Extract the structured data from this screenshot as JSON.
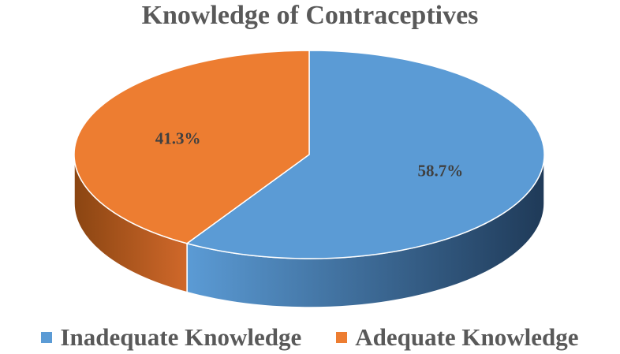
{
  "chart_data": {
    "type": "pie",
    "title": "Knowledge of Contraceptives",
    "categories": [
      "Inadequate Knowledge",
      "Adequate Knowledge"
    ],
    "values": [
      58.7,
      41.3
    ],
    "labels": [
      "58.7%",
      "41.3%"
    ],
    "colors": [
      "#5b9bd5",
      "#ed7d31"
    ],
    "legend_position": "bottom",
    "style": "3d"
  }
}
